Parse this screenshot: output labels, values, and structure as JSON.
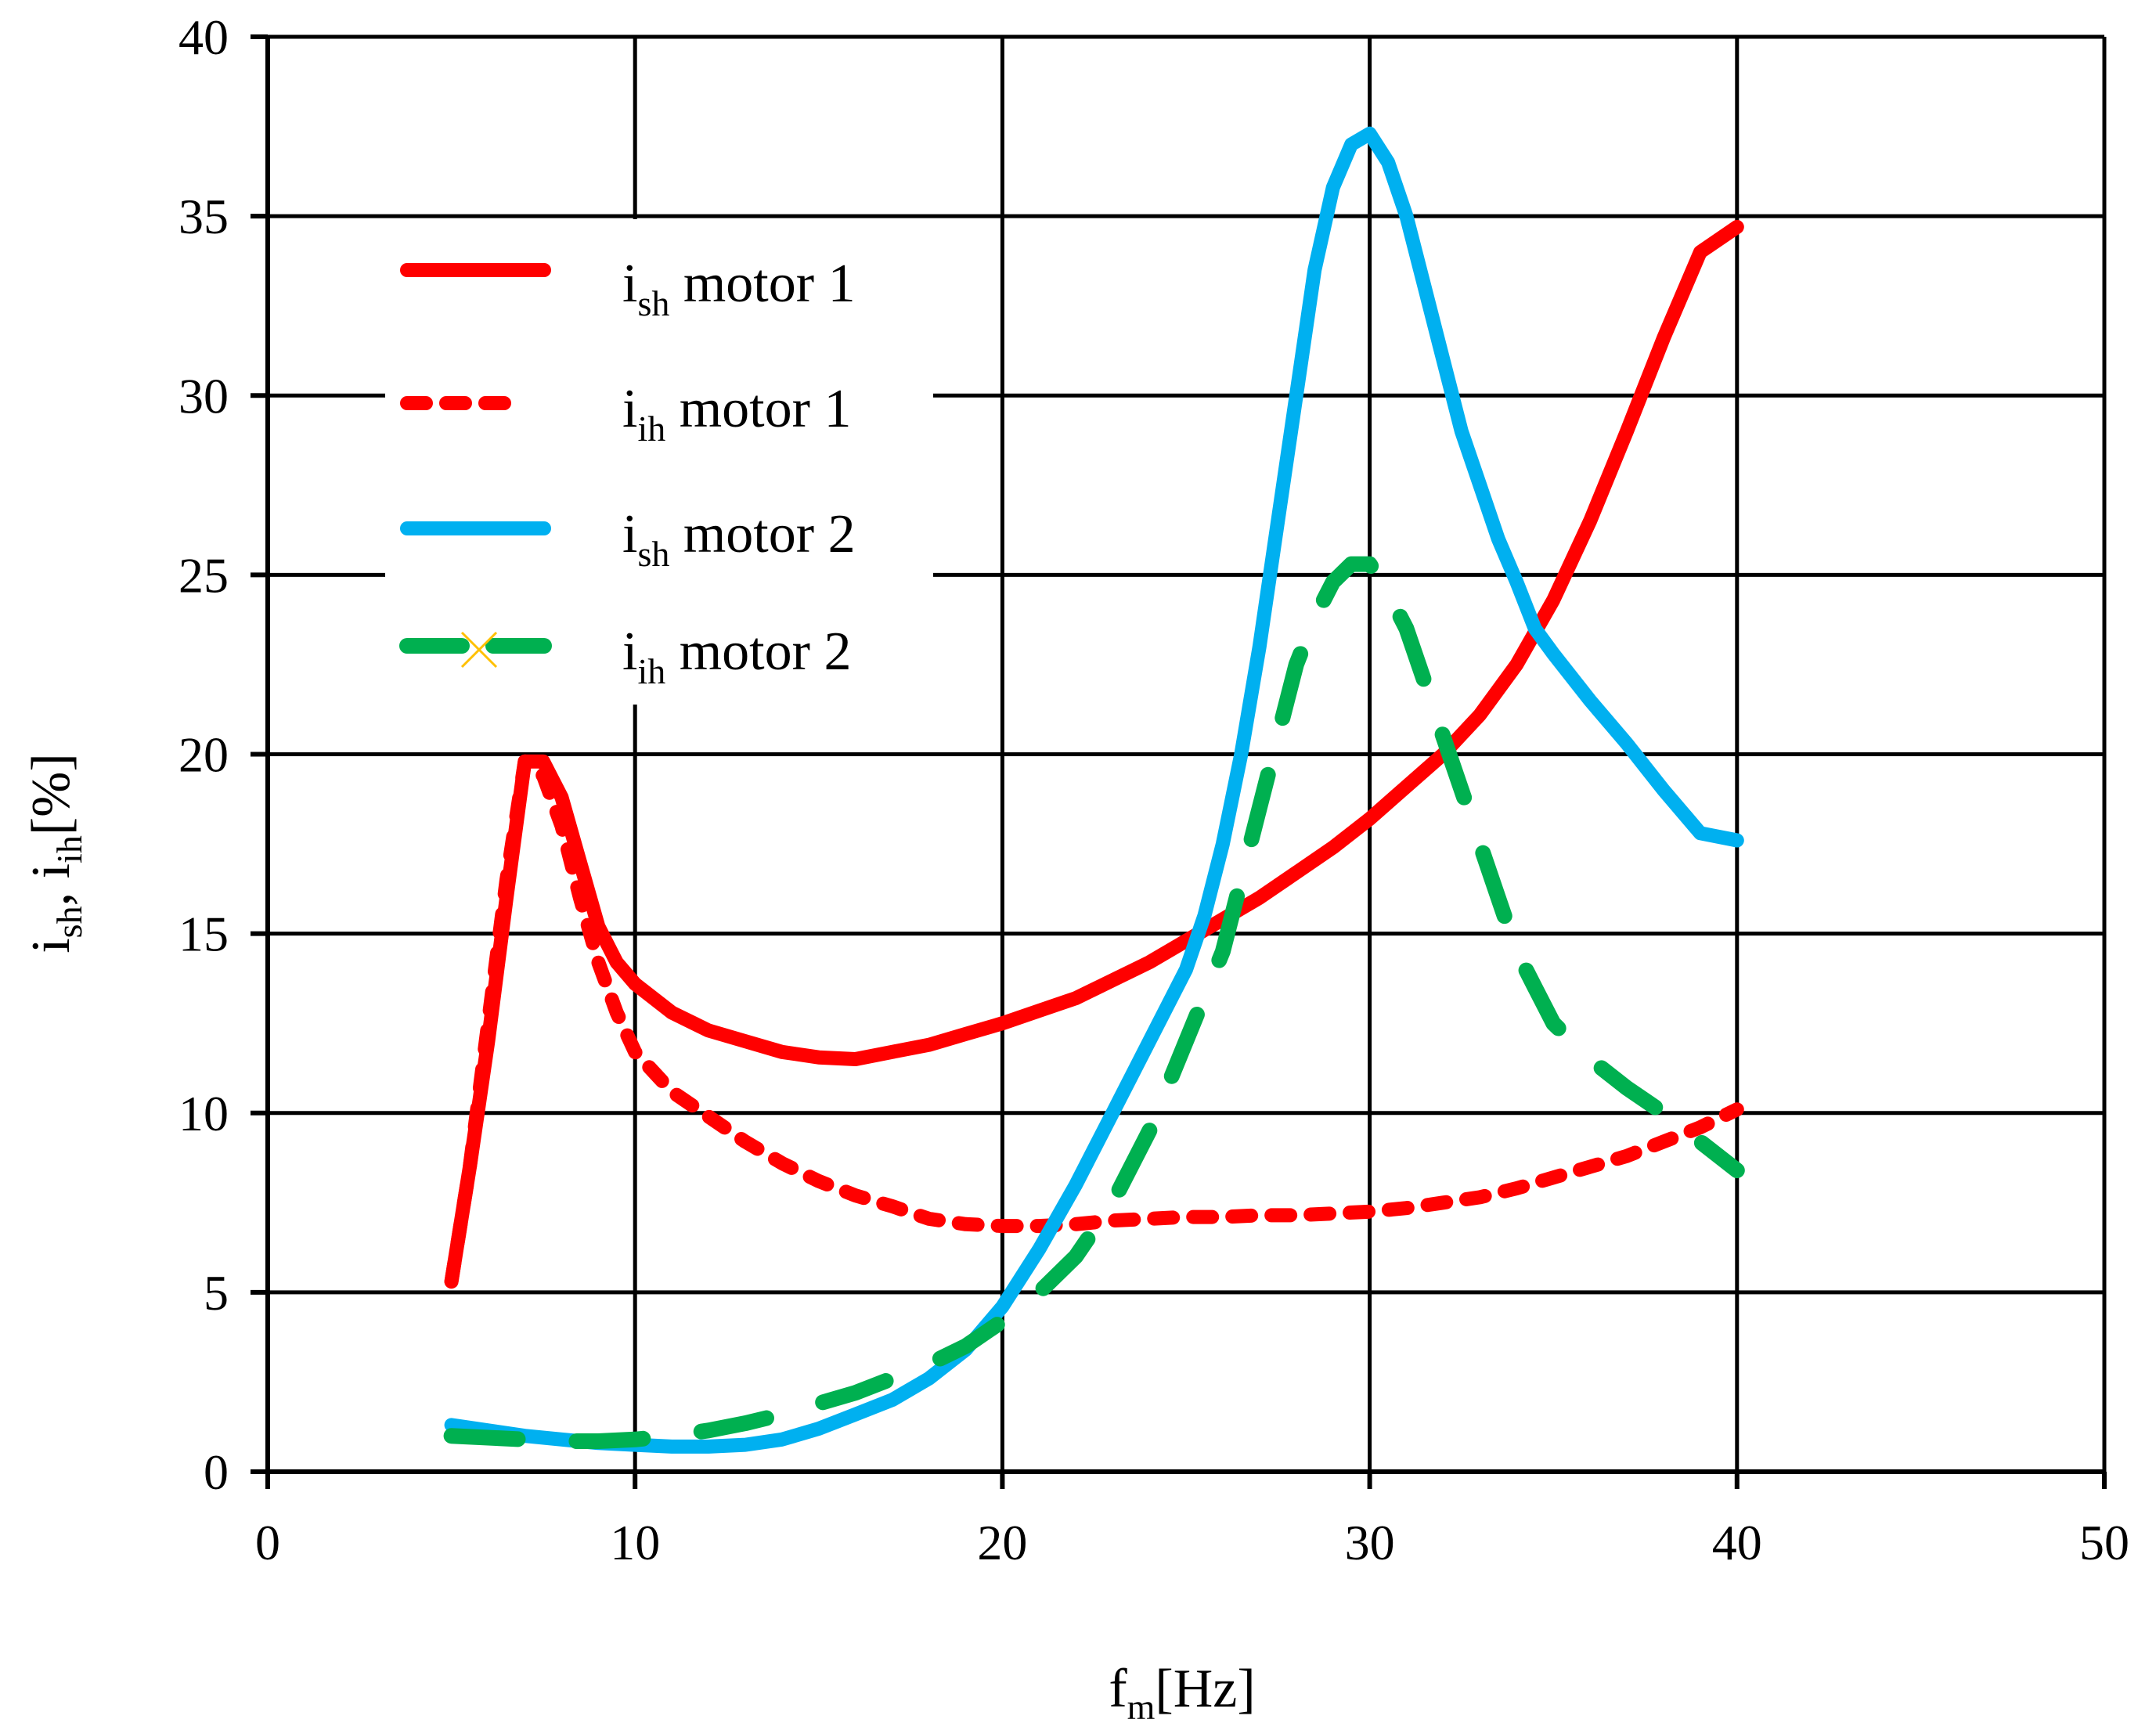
{
  "chart_data": {
    "type": "line",
    "title": "",
    "xlabel": {
      "main": "f",
      "sub": "m",
      "rest": "[Hz]"
    },
    "ylabel": {
      "p1": "i",
      "s1": "sh",
      "p2": ", i",
      "s2": "ih",
      "p3": "[%]"
    },
    "xlim": [
      0,
      50
    ],
    "ylim": [
      0,
      40
    ],
    "xticks": [
      0,
      10,
      20,
      30,
      40,
      50
    ],
    "yticks": [
      0,
      5,
      10,
      15,
      20,
      25,
      30,
      35,
      40
    ],
    "grid": true,
    "legend_position": "top-left",
    "series": [
      {
        "name": "i_sh motor 1",
        "legend": {
          "main": "i",
          "sub": "sh",
          "rest": " motor 1"
        },
        "color": "#ff0000",
        "style": "solid",
        "x": [
          5,
          5.5,
          6,
          6.5,
          7,
          7.5,
          8,
          8.5,
          9,
          9.5,
          10,
          11,
          12,
          13,
          14,
          15,
          16,
          17,
          18,
          19,
          20,
          21,
          22,
          23,
          24,
          25,
          26,
          27,
          28,
          29,
          30,
          31,
          32,
          33,
          34,
          35,
          36,
          37,
          38,
          39,
          40
        ],
        "y": [
          5.3,
          8.5,
          12.0,
          16.0,
          19.8,
          19.8,
          18.8,
          17.0,
          15.2,
          14.2,
          13.6,
          12.8,
          12.3,
          12.0,
          11.7,
          11.55,
          11.5,
          11.7,
          11.9,
          12.2,
          12.5,
          12.85,
          13.2,
          13.7,
          14.2,
          14.8,
          15.4,
          16.0,
          16.7,
          17.4,
          18.2,
          19.1,
          20.0,
          21.1,
          22.5,
          24.3,
          26.5,
          29.0,
          31.6,
          34.0,
          34.7
        ]
      },
      {
        "name": "i_ih motor 1",
        "legend": {
          "main": "i",
          "sub": "ih",
          "rest": " motor 1"
        },
        "color": "#ff0000",
        "style": "dotted",
        "x": [
          5,
          5.5,
          6,
          6.5,
          7,
          7.5,
          8,
          8.5,
          9,
          9.5,
          10,
          11,
          12,
          13,
          14,
          15,
          16,
          17,
          18,
          19,
          20,
          21,
          22,
          23,
          24,
          25,
          26,
          27,
          28,
          29,
          30,
          31,
          32,
          33,
          34,
          35,
          36,
          37,
          38,
          39,
          40
        ],
        "y": [
          5.3,
          8.5,
          12.5,
          16.5,
          19.8,
          19.4,
          18.0,
          16.0,
          14.2,
          12.8,
          11.7,
          10.6,
          9.9,
          9.2,
          8.6,
          8.1,
          7.7,
          7.4,
          7.05,
          6.9,
          6.85,
          6.85,
          6.9,
          7.0,
          7.05,
          7.1,
          7.1,
          7.15,
          7.15,
          7.2,
          7.25,
          7.35,
          7.5,
          7.65,
          7.9,
          8.2,
          8.5,
          8.8,
          9.2,
          9.6,
          10.1
        ]
      },
      {
        "name": "i_sh motor 2",
        "legend": {
          "main": "i",
          "sub": "sh",
          "rest": " motor 2"
        },
        "color": "#00b0f0",
        "style": "solid",
        "x": [
          5,
          6,
          7,
          8,
          9,
          10,
          11,
          12,
          13,
          14,
          15,
          16,
          17,
          18,
          19,
          20,
          21,
          22,
          23,
          24,
          25,
          25.5,
          26,
          26.5,
          27,
          27.5,
          28,
          28.5,
          29,
          29.5,
          30,
          30.5,
          31,
          31.5,
          32,
          32.5,
          33,
          33.5,
          34,
          34.5,
          35,
          36,
          37,
          38,
          39,
          40
        ],
        "y": [
          1.3,
          1.15,
          1.0,
          0.9,
          0.8,
          0.75,
          0.7,
          0.7,
          0.75,
          0.9,
          1.2,
          1.6,
          2.0,
          2.6,
          3.4,
          4.6,
          6.2,
          8.0,
          10.0,
          12.0,
          14.0,
          15.5,
          17.5,
          20.0,
          23.0,
          26.5,
          30.0,
          33.5,
          35.8,
          37.0,
          37.3,
          36.5,
          35.0,
          33.0,
          31.0,
          29.0,
          27.5,
          26.0,
          24.8,
          23.5,
          22.8,
          21.5,
          20.3,
          19.0,
          17.8,
          17.6
        ]
      },
      {
        "name": "i_ih motor 2",
        "legend": {
          "main": "i",
          "sub": "ih",
          "rest": " motor 2"
        },
        "color": "#00b050",
        "style": "dashed-x",
        "x": [
          5,
          6,
          7,
          8,
          9,
          10,
          11,
          12,
          13,
          14,
          15,
          16,
          17,
          18,
          19,
          20,
          21,
          22,
          23,
          24,
          25,
          26,
          26.5,
          27,
          27.5,
          28,
          28.5,
          29,
          29.5,
          30,
          30.5,
          31,
          31.5,
          32,
          32.5,
          33,
          33.5,
          34,
          34.5,
          35,
          36,
          37,
          38,
          39,
          40
        ],
        "y": [
          1.0,
          0.95,
          0.9,
          0.85,
          0.85,
          0.9,
          1.0,
          1.15,
          1.35,
          1.6,
          1.9,
          2.2,
          2.6,
          3.0,
          3.5,
          4.2,
          5.0,
          6.0,
          7.5,
          9.5,
          12.0,
          14.5,
          16.5,
          18.5,
          20.5,
          22.5,
          23.8,
          24.8,
          25.3,
          25.3,
          24.5,
          23.5,
          22.0,
          20.5,
          19.0,
          17.5,
          16.0,
          14.5,
          13.5,
          12.5,
          11.5,
          10.7,
          10.0,
          9.2,
          8.4
        ]
      }
    ]
  }
}
